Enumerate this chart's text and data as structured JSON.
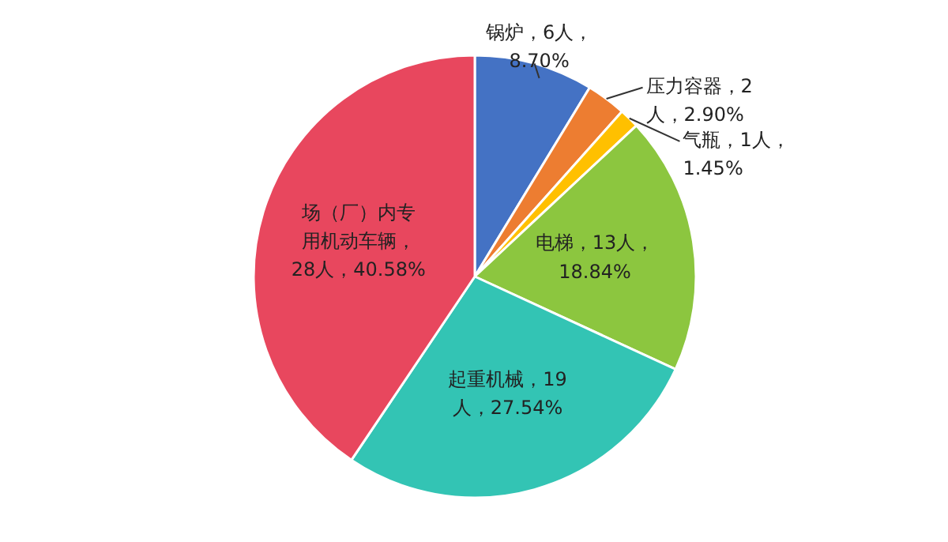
{
  "chart_data": {
    "type": "pie",
    "categories": [
      "锅炉",
      "压力容器",
      "气瓶",
      "电梯",
      "起重机械",
      "场（厂）内专用机动车辆"
    ],
    "values": [
      6,
      2,
      1,
      13,
      19,
      28
    ],
    "colors": [
      "#4472c4",
      "#ed7d31",
      "#ffc000",
      "#8cc63f",
      "#33c4b4",
      "#e8475e"
    ],
    "value_labels": [
      "，6人，\n8.70%",
      "，2\n人，2.90%",
      "，1人，\n1.45%",
      "，13人，\n18.84%",
      "，19\n人，27.54%",
      "，\n28人，40.58%"
    ]
  }
}
